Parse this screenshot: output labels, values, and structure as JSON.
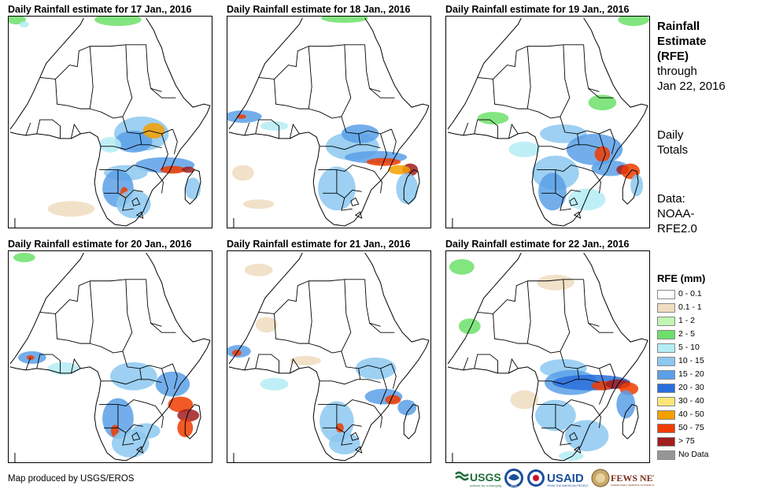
{
  "panels": [
    {
      "title": "Daily Rainfall estimate for 17 Jan., 2016",
      "day": 17
    },
    {
      "title": "Daily Rainfall estimate for 18 Jan., 2016",
      "day": 18
    },
    {
      "title": "Daily Rainfall estimate for 19 Jan., 2016",
      "day": 19
    },
    {
      "title": "Daily Rainfall estimate for 20 Jan., 2016",
      "day": 20
    },
    {
      "title": "Daily Rainfall estimate for 21 Jan., 2016",
      "day": 21
    },
    {
      "title": "Daily Rainfall estimate for 22 Jan., 2016",
      "day": 22
    }
  ],
  "sidebar": {
    "line1": "Rainfall",
    "line2": "Estimate",
    "line3": "(RFE)",
    "line4": "through",
    "line5": "Jan 22, 2016",
    "line6": "Daily",
    "line7": "Totals",
    "line8": "Data:",
    "line9": "NOAA-",
    "line10": "RFE2.0"
  },
  "legend": {
    "title": "RFE (mm)",
    "items": [
      {
        "label": "0 - 0.1",
        "color": "#ffffff"
      },
      {
        "label": "0.1 - 1",
        "color": "#f0dcc0"
      },
      {
        "label": "1 - 2",
        "color": "#c2f5b4"
      },
      {
        "label": "2 - 5",
        "color": "#6de06a"
      },
      {
        "label": "5 - 10",
        "color": "#b4ecf5"
      },
      {
        "label": "10 - 15",
        "color": "#8cc8f0"
      },
      {
        "label": "15 - 20",
        "color": "#5aa0e8"
      },
      {
        "label": "20 - 30",
        "color": "#2a6edc"
      },
      {
        "label": "30 - 40",
        "color": "#fae678"
      },
      {
        "label": "40 - 50",
        "color": "#f5a000"
      },
      {
        "label": "50 - 75",
        "color": "#f03c00"
      },
      {
        "label": "> 75",
        "color": "#a01e1e"
      },
      {
        "label": "No Data",
        "color": "#969696"
      }
    ]
  },
  "footer": {
    "credit": "Map produced by USGS/EROS",
    "logo_usgs": "USGS",
    "logo_noaa": "NOAA",
    "logo_usaid": "USAID",
    "logo_fews": "FEWS NET"
  }
}
